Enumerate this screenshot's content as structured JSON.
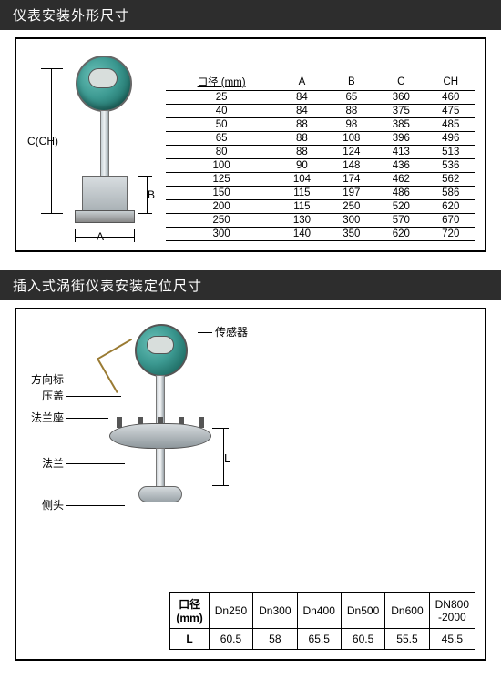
{
  "section1": {
    "title": "仪表安装外形尺寸",
    "dim_labels": {
      "c": "C(CH)",
      "b": "B",
      "a": "A"
    },
    "table": {
      "headers": [
        "口径 (mm)",
        "A",
        "B",
        "C",
        "CH"
      ],
      "rows": [
        [
          "25",
          "84",
          "65",
          "360",
          "460"
        ],
        [
          "40",
          "84",
          "88",
          "375",
          "475"
        ],
        [
          "50",
          "88",
          "98",
          "385",
          "485"
        ],
        [
          "65",
          "88",
          "108",
          "396",
          "496"
        ],
        [
          "80",
          "88",
          "124",
          "413",
          "513"
        ],
        [
          "100",
          "90",
          "148",
          "436",
          "536"
        ],
        [
          "125",
          "104",
          "174",
          "462",
          "562"
        ],
        [
          "150",
          "115",
          "197",
          "486",
          "586"
        ],
        [
          "200",
          "115",
          "250",
          "520",
          "620"
        ],
        [
          "250",
          "130",
          "300",
          "570",
          "670"
        ],
        [
          "300",
          "140",
          "350",
          "620",
          "720"
        ]
      ]
    }
  },
  "section2": {
    "title": "插入式涡街仪表安装定位尺寸",
    "callouts": {
      "sensor": "传感器",
      "direction": "方向标",
      "cover": "压盖",
      "flange_seat": "法兰座",
      "flange": "法兰",
      "side_head": "侧头"
    },
    "dim_l": "L",
    "table": {
      "row_header": "口径\n(mm)",
      "row_l": "L",
      "cols": [
        "Dn250",
        "Dn300",
        "Dn400",
        "Dn500",
        "Dn600",
        "DN800\n-2000"
      ],
      "values": [
        "60.5",
        "58",
        "65.5",
        "60.5",
        "55.5",
        "45.5"
      ]
    }
  },
  "style": {
    "header_bg": "#2d2d2d",
    "accent_teal": "#3c9991",
    "border_color": "#000000"
  }
}
